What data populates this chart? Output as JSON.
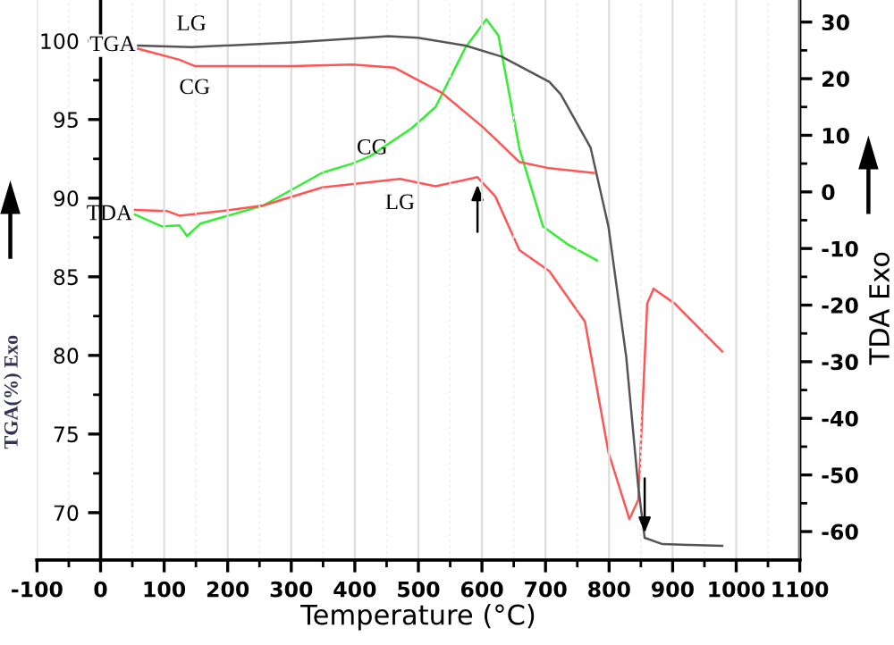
{
  "chart_data": {
    "type": "line",
    "xlabel": "Temperature (°C)",
    "ylabel": "TGA(%) Exo",
    "y2label": "TDA Exo",
    "xlim": [
      -100,
      1100
    ],
    "xticks": [
      -100,
      0,
      100,
      200,
      300,
      400,
      500,
      600,
      700,
      800,
      900,
      1000,
      1100
    ],
    "ylim": [
      67,
      102.6
    ],
    "yticks": [
      70,
      75,
      80,
      85,
      90,
      95,
      100
    ],
    "y2lim": [
      -65,
      33.9
    ],
    "y2ticks": [
      -60,
      -50,
      -40,
      -30,
      -20,
      -10,
      0,
      10,
      20,
      30
    ],
    "grid": "x",
    "legend": false,
    "marker": "none",
    "line_style": "solid",
    "series": [
      {
        "name": "LG",
        "color": "#555555",
        "x": [
          59,
          143,
          302,
          453,
          499,
          574,
          631,
          706,
          724,
          771,
          799,
          827,
          846,
          856,
          884,
          978
        ],
        "values": [
          99.7,
          99.6,
          99.9,
          100.3,
          100.2,
          99.7,
          99.0,
          97.4,
          96.6,
          93.2,
          88.2,
          79.9,
          71.6,
          68.4,
          68.0,
          67.9
        ]
      },
      {
        "name": "CG",
        "color": "#ff5555",
        "x": [
          59,
          124,
          148,
          302,
          396,
          462,
          537,
          602,
          659,
          706,
          776
        ],
        "values": [
          99.5,
          98.8,
          98.4,
          98.4,
          98.5,
          98.3,
          96.7,
          94.5,
          92.3,
          91.9,
          91.6
        ]
      },
      {
        "name": "CG",
        "color": "#33ee33",
        "axis": "y2",
        "x": [
          54,
          96,
          124,
          136,
          157,
          256,
          349,
          396,
          424,
          490,
          527,
          574,
          607,
          626,
          659,
          696,
          734,
          781
        ],
        "values": [
          -4.0,
          -6.1,
          -5.9,
          -7.8,
          -5.6,
          -2.4,
          3.4,
          5.0,
          6.3,
          11.3,
          15.0,
          25.5,
          30.5,
          27.6,
          7.6,
          -6.1,
          -9.2,
          -12.1
        ]
      },
      {
        "name": "LG",
        "color": "#ff5555",
        "axis": "y2",
        "x": [
          54,
          105,
          124,
          190,
          256,
          349,
          471,
          527,
          593,
          621,
          659,
          706,
          762,
          799,
          832,
          846,
          860,
          870,
          903,
          978
        ],
        "values": [
          -3.2,
          -3.4,
          -4.2,
          -3.4,
          -2.4,
          0.8,
          2.3,
          1.0,
          2.6,
          -0.8,
          -10.3,
          -14.0,
          -22.9,
          -46.0,
          -57.8,
          -54.4,
          -19.7,
          -17.1,
          -19.7,
          -28.2
        ]
      }
    ],
    "annotations": [
      "TGA",
      "TDA"
    ]
  }
}
